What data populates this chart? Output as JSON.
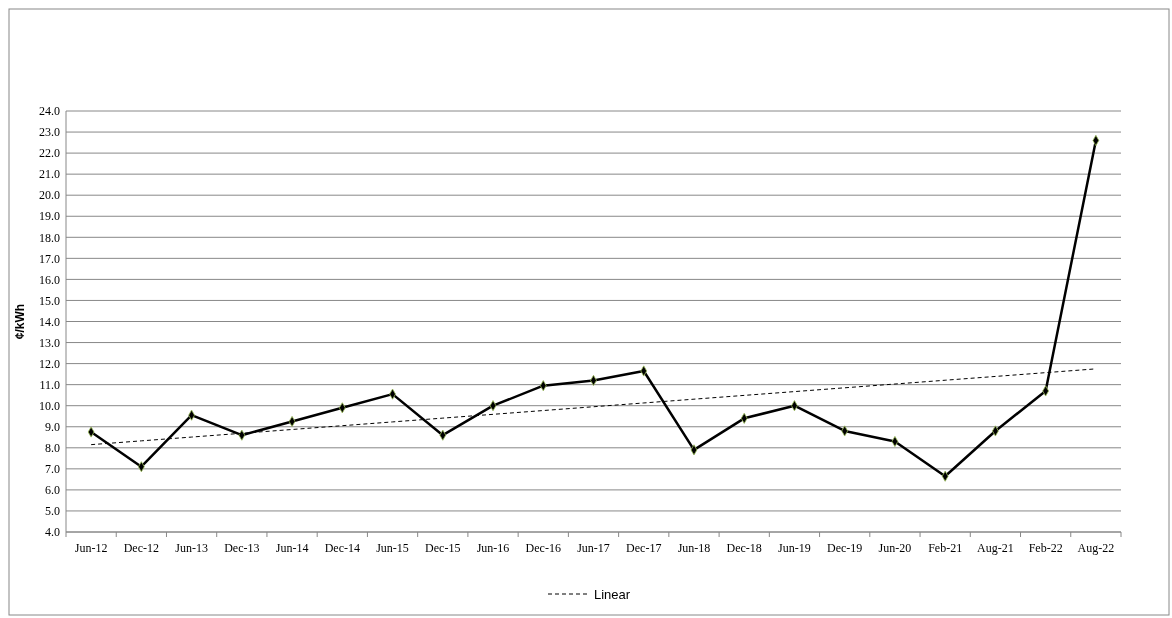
{
  "chart_data": {
    "type": "line",
    "ylabel": "¢/kWh",
    "categories": [
      "Jun-12",
      "Dec-12",
      "Jun-13",
      "Dec-13",
      "Jun-14",
      "Dec-14",
      "Jun-15",
      "Dec-15",
      "Jun-16",
      "Dec-16",
      "Jun-17",
      "Dec-17",
      "Jun-18",
      "Dec-18",
      "Jun-19",
      "Dec-19",
      "Jun-20",
      "Feb-21",
      "Aug-21",
      "Feb-22",
      "Aug-22"
    ],
    "series": [
      {
        "color": "#000000",
        "marker": "diamond",
        "line_style": "solid",
        "values": [
          8.75,
          7.1,
          9.55,
          8.6,
          9.25,
          9.9,
          10.55,
          8.6,
          10.0,
          10.95,
          11.2,
          11.65,
          7.9,
          9.4,
          10.0,
          8.8,
          8.3,
          6.65,
          8.8,
          10.7,
          22.6
        ]
      },
      {
        "name": "Linear",
        "type": "line",
        "color": "#000000",
        "marker": "none",
        "line_style": "dashed",
        "values": [
          8.15,
          8.33,
          8.51,
          8.69,
          8.87,
          9.05,
          9.23,
          9.41,
          9.59,
          9.77,
          9.95,
          10.13,
          10.31,
          10.49,
          10.67,
          10.85,
          11.03,
          11.21,
          11.39,
          11.57,
          11.75
        ]
      }
    ],
    "ylim": [
      4,
      24
    ],
    "yticks": [
      {
        "value": 4,
        "label": "4.0"
      },
      {
        "value": 5,
        "label": "5.0"
      },
      {
        "value": 6,
        "label": "6.0"
      },
      {
        "value": 7,
        "label": "7.0"
      },
      {
        "value": 8,
        "label": "8.0"
      },
      {
        "value": 9,
        "label": "9.0"
      },
      {
        "value": 10,
        "label": "10.0"
      },
      {
        "value": 11,
        "label": "11.0"
      },
      {
        "value": 12,
        "label": "12.0"
      },
      {
        "value": 13,
        "label": "13.0"
      },
      {
        "value": 14,
        "label": "14.0"
      },
      {
        "value": 15,
        "label": "15.0"
      },
      {
        "value": 16,
        "label": "16.0"
      },
      {
        "value": 17,
        "label": "17.0"
      },
      {
        "value": 18,
        "label": "18.0"
      },
      {
        "value": 19,
        "label": "19.0"
      },
      {
        "value": 20,
        "label": "20.0"
      },
      {
        "value": 21,
        "label": "21.0"
      },
      {
        "value": 22,
        "label": "22.0"
      },
      {
        "value": 23,
        "label": "23.0"
      },
      {
        "value": 24,
        "label": "24.0"
      }
    ],
    "grid": "y",
    "legend": "bottom"
  }
}
